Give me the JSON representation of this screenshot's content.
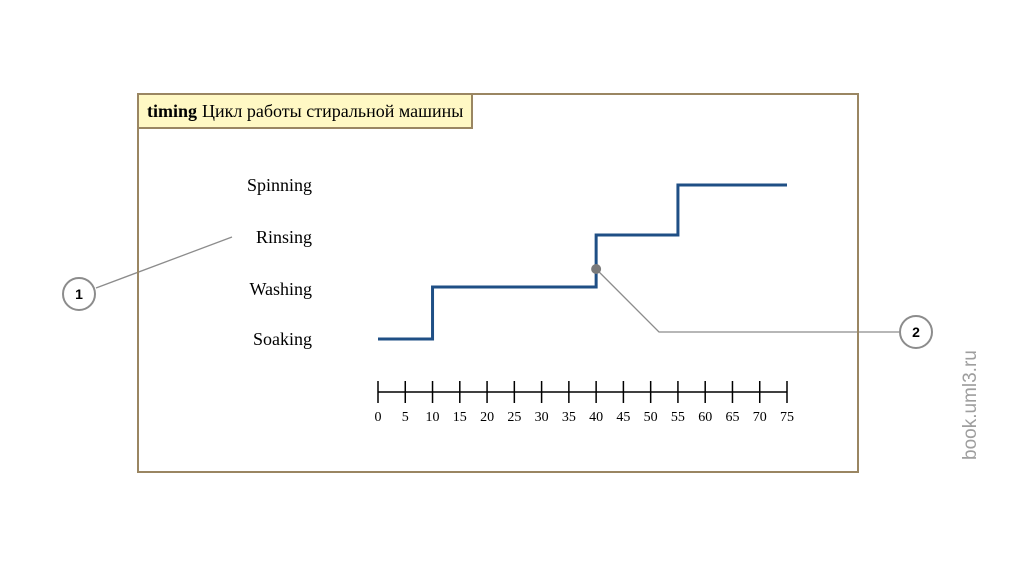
{
  "diagram": {
    "keyword": "timing",
    "title": "Цикл работы стиральной машины"
  },
  "chart_data": {
    "type": "line",
    "states": [
      "Soaking",
      "Washing",
      "Rinsing",
      "Spinning"
    ],
    "state_sequence": [
      {
        "state": "Soaking",
        "from": 0,
        "to": 10
      },
      {
        "state": "Washing",
        "from": 10,
        "to": 40
      },
      {
        "state": "Rinsing",
        "from": 40,
        "to": 55
      },
      {
        "state": "Spinning",
        "from": 55,
        "to": 75
      }
    ],
    "x_ticks": [
      "0",
      "5",
      "10",
      "15",
      "20",
      "25",
      "30",
      "35",
      "40",
      "45",
      "50",
      "55",
      "60",
      "65",
      "70",
      "75"
    ],
    "xlim": [
      0,
      75
    ],
    "line_color": "#1f4f85"
  },
  "callouts": [
    {
      "id": "callout-1",
      "label": "1",
      "points_to": "Rinsing"
    },
    {
      "id": "callout-2",
      "label": "2",
      "points_to_time": 40
    }
  ],
  "watermark": "book.uml3.ru",
  "colors": {
    "frame": "#9a8662",
    "title_bg": "#fff8c4",
    "callout_line": "#8c8c8c"
  }
}
